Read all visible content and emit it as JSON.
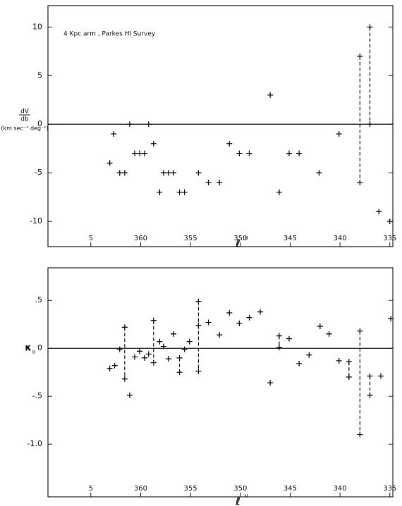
{
  "chart_data": [
    {
      "type": "scatter",
      "annotation": "4 Kpc arm , Parkes HI Survey",
      "ylabel_numerator": "dV",
      "ylabel_denominator": "db",
      "ylabel_units": "(km sec⁻¹ deg⁻¹)",
      "xlabel": "ℓ",
      "xlabel_superscript": "II",
      "xlim": [
        369.3,
        334.7
      ],
      "ylim": [
        -12.6,
        12.2
      ],
      "xticks": [
        {
          "value": 365,
          "label": "5"
        },
        360,
        355,
        350,
        345,
        340,
        335
      ],
      "yticks": [
        10,
        5,
        0,
        -5,
        -10
      ],
      "color": "#111111",
      "x": [
        363.1,
        362.7,
        362.1,
        361.6,
        361.1,
        360.6,
        360.1,
        359.6,
        359.2,
        358.7,
        358.1,
        357.7,
        357.2,
        356.7,
        356.1,
        355.6,
        354.2,
        353.2,
        352.1,
        351.1,
        350.1,
        349.1,
        347.0,
        346.1,
        345.1,
        344.1,
        342.1,
        340.1,
        338.0,
        338.0,
        337.0,
        337.0,
        336.1,
        335.0
      ],
      "values": [
        -4,
        -1,
        -5,
        -5,
        0,
        -3,
        -3,
        -3,
        0,
        -2,
        -7,
        -5,
        -5,
        -5,
        -7,
        -7,
        -5,
        -6,
        -6,
        -2,
        -3,
        -3,
        3,
        -7,
        -3,
        -3,
        -5,
        -1,
        7,
        -6,
        10,
        0,
        -9,
        -10
      ]
    },
    {
      "type": "scatter",
      "ylabel": "κ",
      "ylabel_subscript": "II",
      "xlabel": "ℓ",
      "xlabel_superscript": "II",
      "xlim": [
        369.3,
        334.7
      ],
      "ylim": [
        -1.55,
        0.84
      ],
      "xticks": [
        {
          "value": 365,
          "label": "5"
        },
        360,
        355,
        350,
        345,
        340,
        335
      ],
      "yticks": [
        {
          "value": 0.5,
          "label": ".5"
        },
        0,
        {
          "value": -0.5,
          "label": "-.5"
        },
        {
          "value": -1.0,
          "label": "-1.0"
        }
      ],
      "color": "#111111",
      "x": [
        363.1,
        362.6,
        362.1,
        361.6,
        361.6,
        361.1,
        360.6,
        360.1,
        359.6,
        359.2,
        358.7,
        358.7,
        358.1,
        357.7,
        357.2,
        356.7,
        356.1,
        356.1,
        355.6,
        355.1,
        354.2,
        354.2,
        354.2,
        353.2,
        352.1,
        351.1,
        350.1,
        349.1,
        348.0,
        347.0,
        346.1,
        346.1,
        345.1,
        344.1,
        343.1,
        342.0,
        341.1,
        340.1,
        339.1,
        339.1,
        338.0,
        338.0,
        337.0,
        337.0,
        335.9,
        334.9
      ],
      "values": [
        -0.21,
        -0.18,
        -0.01,
        0.22,
        -0.32,
        -0.49,
        -0.09,
        -0.03,
        -0.1,
        -0.06,
        0.29,
        -0.15,
        0.07,
        0.02,
        -0.11,
        0.15,
        -0.1,
        -0.25,
        -0.01,
        0.07,
        0.49,
        0.24,
        -0.24,
        0.27,
        0.14,
        0.37,
        0.26,
        0.32,
        0.38,
        -0.36,
        0.13,
        0.01,
        0.1,
        -0.16,
        -0.07,
        0.23,
        0.15,
        -0.13,
        -0.14,
        -0.3,
        0.18,
        -0.9,
        -0.29,
        -0.49,
        -0.29,
        0.31
      ]
    }
  ]
}
